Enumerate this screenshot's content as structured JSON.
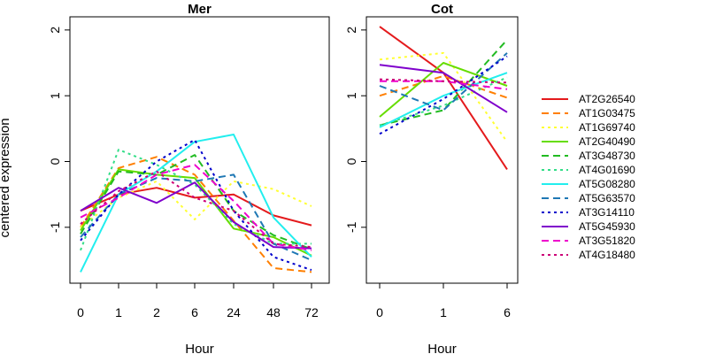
{
  "chart_data": [
    {
      "type": "line",
      "title": "Mer",
      "xlabel": "Hour",
      "ylabel": "centered expression",
      "categories": [
        "0",
        "1",
        "2",
        "6",
        "24",
        "48",
        "72"
      ],
      "ylim": [
        -1.85,
        2.2
      ],
      "yticks": [
        "-1",
        "0",
        "1",
        "2"
      ],
      "grid": false,
      "series": [
        {
          "name": "AT2G26540",
          "color": "#e41a1c",
          "dash": "solid",
          "values": [
            -0.75,
            -0.5,
            -0.4,
            -0.55,
            -0.5,
            -0.82,
            -0.97
          ]
        },
        {
          "name": "AT1G03475",
          "color": "#ff7f00",
          "dash": "dashed",
          "values": [
            -1.0,
            -0.1,
            0.07,
            -0.2,
            -0.9,
            -1.62,
            -1.68
          ]
        },
        {
          "name": "AT1G69740",
          "color": "#ffff33",
          "dash": "dotted",
          "values": [
            -1.0,
            -0.55,
            -0.3,
            -0.88,
            -0.3,
            -0.42,
            -0.68
          ]
        },
        {
          "name": "AT2G40490",
          "color": "#66dd00",
          "dash": "solid",
          "values": [
            -1.05,
            -0.12,
            -0.2,
            -0.25,
            -1.02,
            -1.15,
            -1.43
          ]
        },
        {
          "name": "AT3G48730",
          "color": "#22bb22",
          "dash": "dashed",
          "values": [
            -1.1,
            -0.15,
            -0.2,
            0.1,
            -0.75,
            -1.12,
            -1.33
          ]
        },
        {
          "name": "AT4G01690",
          "color": "#33dd88",
          "dash": "dotted",
          "values": [
            -1.35,
            0.18,
            -0.05,
            -0.35,
            -0.95,
            -1.25,
            -1.25
          ]
        },
        {
          "name": "AT5G08280",
          "color": "#22eeee",
          "dash": "solid",
          "values": [
            -1.68,
            -0.5,
            -0.15,
            0.3,
            0.41,
            -0.85,
            -1.45
          ]
        },
        {
          "name": "AT5G63570",
          "color": "#1f78b4",
          "dash": "dashed",
          "values": [
            -1.15,
            -0.5,
            -0.25,
            -0.3,
            -0.2,
            -1.25,
            -1.5
          ]
        },
        {
          "name": "AT3G14110",
          "color": "#0000cc",
          "dash": "dotted",
          "values": [
            -1.2,
            -0.5,
            0.0,
            0.33,
            -0.75,
            -1.45,
            -1.65
          ]
        },
        {
          "name": "AT5G45930",
          "color": "#7f00cc",
          "dash": "solid",
          "values": [
            -0.75,
            -0.4,
            -0.63,
            -0.32,
            -0.92,
            -1.3,
            -1.32
          ]
        },
        {
          "name": "AT3G51820",
          "color": "#ee00cc",
          "dash": "dashed",
          "values": [
            -0.85,
            -0.55,
            -0.2,
            -0.05,
            -0.6,
            -1.25,
            -1.35
          ]
        },
        {
          "name": "AT4G18480",
          "color": "#cc0077",
          "dash": "dotted",
          "values": [
            -0.95,
            -0.45,
            -0.15,
            -0.55,
            -0.75,
            -1.25,
            -1.3
          ]
        }
      ]
    },
    {
      "type": "line",
      "title": "Cot",
      "xlabel": "Hour",
      "categories": [
        "0",
        "1",
        "6"
      ],
      "ylim": [
        -1.85,
        2.2
      ],
      "yticks": [
        "-1",
        "0",
        "1",
        "2"
      ],
      "grid": false,
      "series": [
        {
          "name": "AT2G26540",
          "values": [
            2.05,
            1.35,
            -0.12
          ]
        },
        {
          "name": "AT1G03475",
          "values": [
            1.0,
            1.3,
            0.97
          ]
        },
        {
          "name": "AT1G69740",
          "values": [
            1.55,
            1.65,
            0.3
          ]
        },
        {
          "name": "AT2G40490",
          "values": [
            0.68,
            1.5,
            1.15
          ]
        },
        {
          "name": "AT3G48730",
          "values": [
            0.55,
            0.78,
            1.85
          ]
        },
        {
          "name": "AT4G01690",
          "values": [
            0.55,
            0.85,
            1.28
          ]
        },
        {
          "name": "AT5G08280",
          "values": [
            0.52,
            1.0,
            1.35
          ]
        },
        {
          "name": "AT5G63570",
          "values": [
            1.15,
            0.78,
            1.65
          ]
        },
        {
          "name": "AT3G14110",
          "values": [
            0.42,
            0.95,
            1.6
          ]
        },
        {
          "name": "AT5G45930",
          "values": [
            1.47,
            1.35,
            0.75
          ]
        },
        {
          "name": "AT3G51820",
          "values": [
            1.22,
            1.22,
            1.1
          ]
        },
        {
          "name": "AT4G18480",
          "values": [
            1.25,
            1.22,
            1.2
          ]
        }
      ]
    }
  ]
}
